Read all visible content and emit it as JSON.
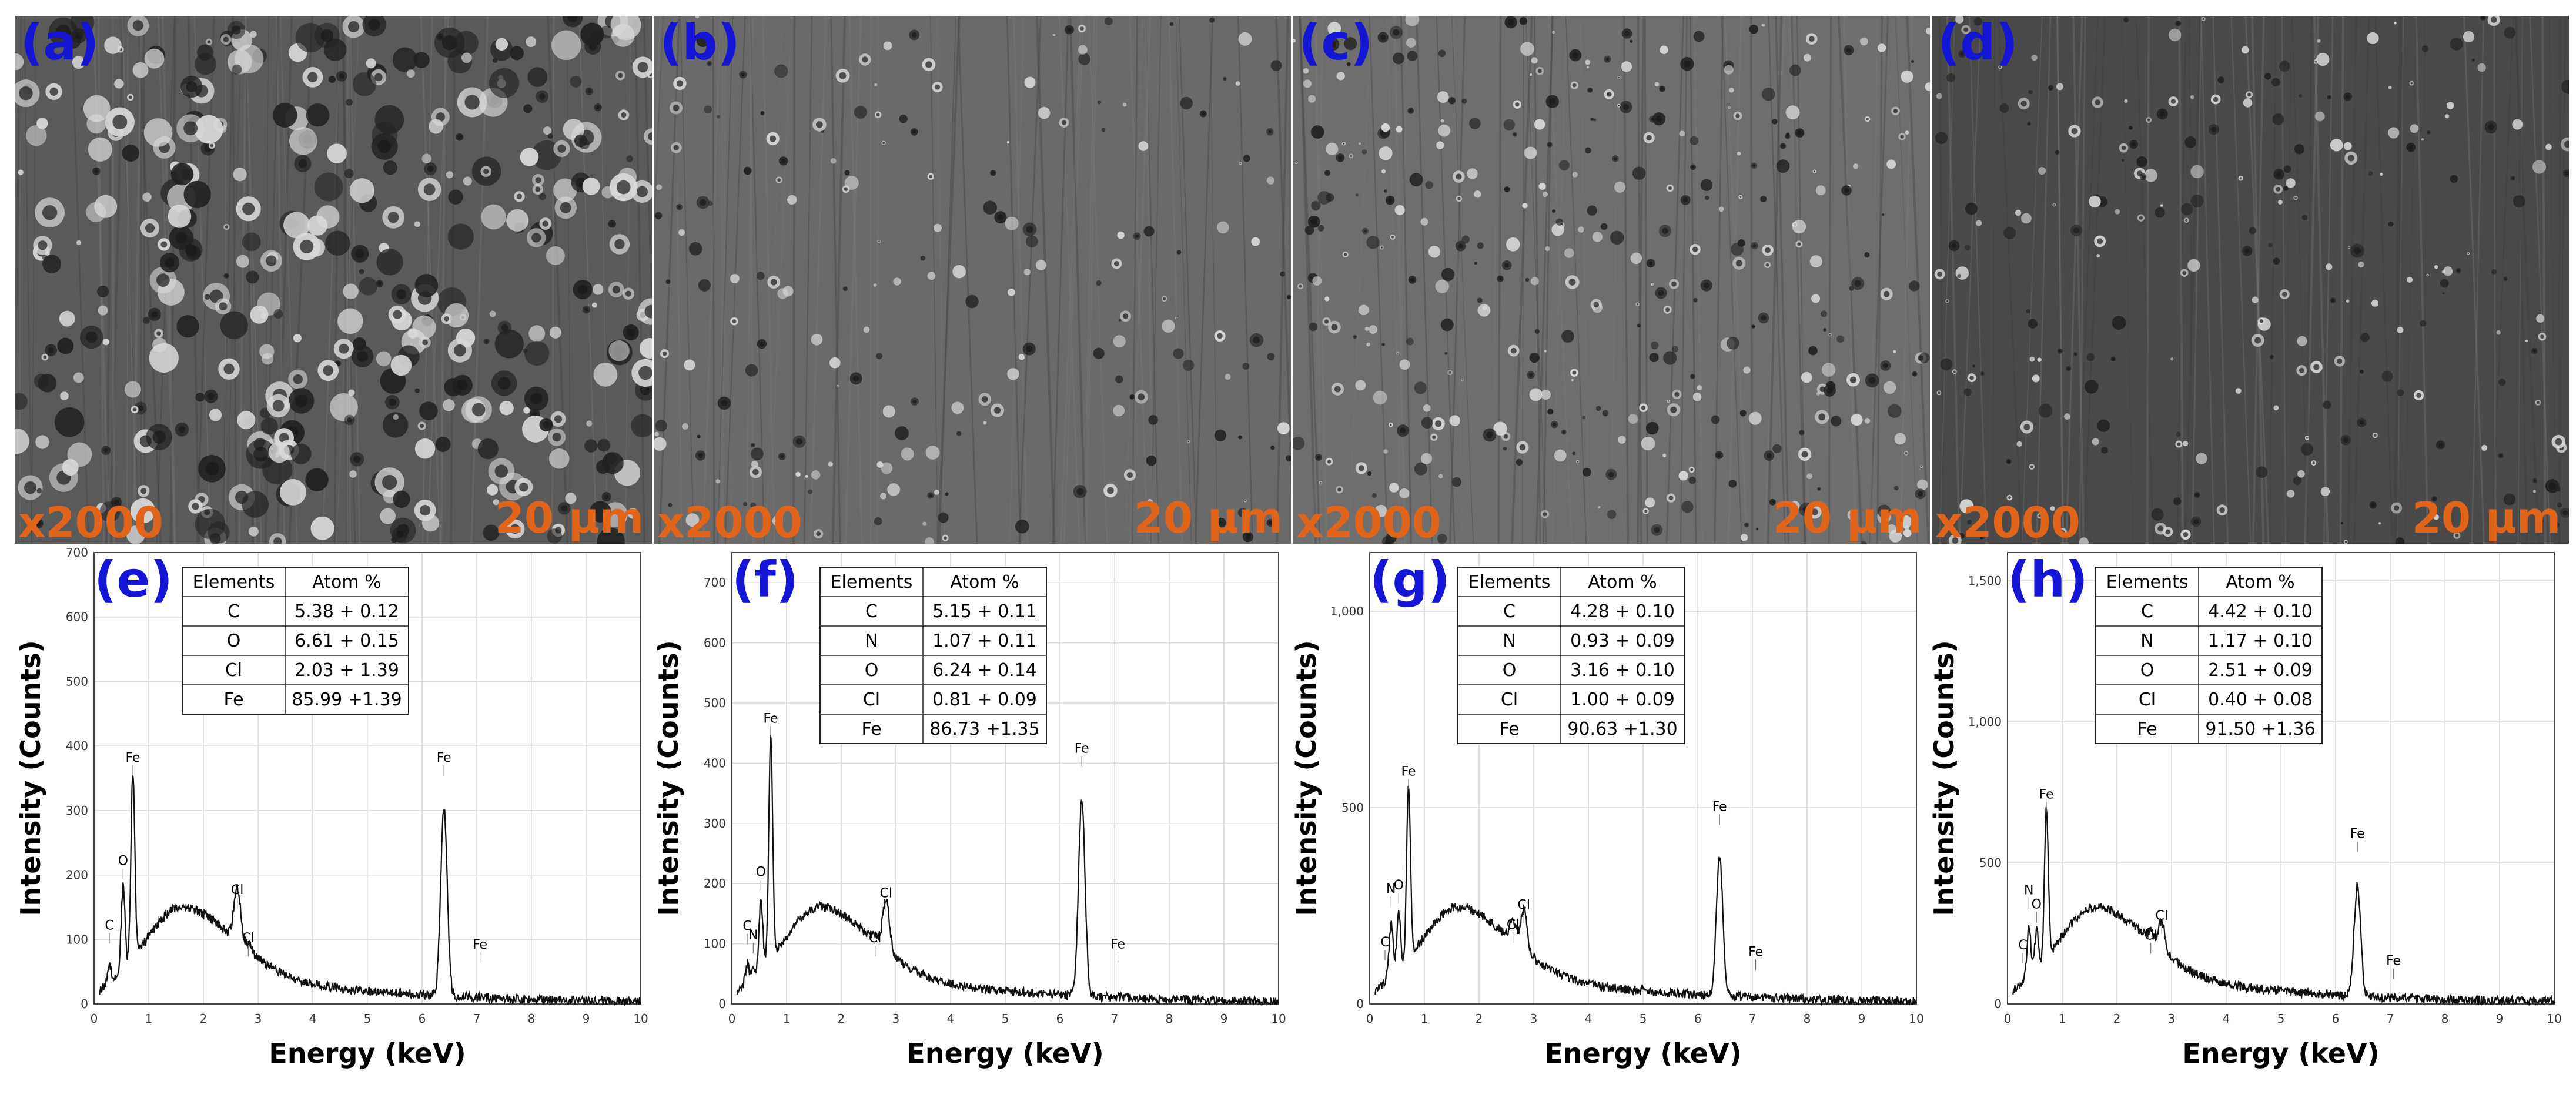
{
  "sem_panels": [
    {
      "label": "(a)",
      "magnification": "x2000",
      "scale": "20 μm",
      "shade": "#5a5a5a"
    },
    {
      "label": "(b)",
      "magnification": "x2000",
      "scale": "20 μm",
      "shade": "#6a6a6a"
    },
    {
      "label": "(c)",
      "magnification": "x2000",
      "scale": "20 μm",
      "shade": "#6e6e6e"
    },
    {
      "label": "(d)",
      "magnification": "x2000",
      "scale": "20 μm",
      "shade": "#4a4a4a"
    }
  ],
  "chart_data": [
    {
      "type": "line",
      "panel": "(e)",
      "xlabel": "Energy (keV)",
      "ylabel": "Intensity (Counts)",
      "xlim": [
        0,
        10
      ],
      "ylim": [
        0,
        700
      ],
      "yticks": [
        0,
        100,
        200,
        300,
        400,
        500,
        600,
        700
      ],
      "ytick_labels": [
        "0",
        "100",
        "200",
        "300",
        "400",
        "500",
        "600",
        "700"
      ],
      "xticks": [
        0,
        1,
        2,
        3,
        4,
        5,
        6,
        7,
        8,
        9,
        10
      ],
      "peaks": [
        {
          "label": "C",
          "x": 0.28,
          "y": 90
        },
        {
          "label": "O",
          "x": 0.53,
          "y": 190
        },
        {
          "label": "Fe",
          "x": 0.71,
          "y": 350
        },
        {
          "label": "Cl",
          "x": 2.62,
          "y": 145
        },
        {
          "label": "Cl",
          "x": 2.82,
          "y": 70
        },
        {
          "label": "Fe",
          "x": 6.4,
          "y": 350
        },
        {
          "label": "Fe",
          "x": 7.06,
          "y": 60
        }
      ],
      "table": {
        "headers": [
          "Elements",
          "Atom %"
        ],
        "rows": [
          [
            "C",
            "5.38 + 0.12"
          ],
          [
            "O",
            "6.61 + 0.15"
          ],
          [
            "Cl",
            "2.03 + 1.39"
          ],
          [
            "Fe",
            "85.99 +1.39"
          ]
        ]
      }
    },
    {
      "type": "line",
      "panel": "(f)",
      "xlabel": "Energy (keV)",
      "ylabel": "Intensity (Counts)",
      "xlim": [
        0,
        10
      ],
      "ylim": [
        0,
        750
      ],
      "yticks": [
        0,
        100,
        200,
        300,
        400,
        500,
        600,
        700
      ],
      "ytick_labels": [
        "0",
        "100",
        "200",
        "300",
        "400",
        "500",
        "600",
        "700"
      ],
      "xticks": [
        0,
        1,
        2,
        3,
        4,
        5,
        6,
        7,
        8,
        9,
        10
      ],
      "peaks": [
        {
          "label": "C",
          "x": 0.28,
          "y": 95
        },
        {
          "label": "N",
          "x": 0.39,
          "y": 80
        },
        {
          "label": "O",
          "x": 0.53,
          "y": 185
        },
        {
          "label": "Fe",
          "x": 0.71,
          "y": 440
        },
        {
          "label": "Cl",
          "x": 2.62,
          "y": 75
        },
        {
          "label": "Cl",
          "x": 2.82,
          "y": 150
        },
        {
          "label": "Fe",
          "x": 6.4,
          "y": 390
        },
        {
          "label": "Fe",
          "x": 7.06,
          "y": 65
        }
      ],
      "table": {
        "headers": [
          "Elements",
          "Atom %"
        ],
        "rows": [
          [
            "C",
            "5.15 + 0.11"
          ],
          [
            "N",
            "1.07 + 0.11"
          ],
          [
            "O",
            "6.24 + 0.14"
          ],
          [
            "Cl",
            "0.81 + 0.09"
          ],
          [
            "Fe",
            "86.73 +1.35"
          ]
        ]
      }
    },
    {
      "type": "line",
      "panel": "(g)",
      "xlabel": "Energy (keV)",
      "ylabel": "Intensity (Counts)",
      "xlim": [
        0,
        10
      ],
      "ylim": [
        0,
        1150
      ],
      "yticks": [
        0,
        500,
        1000
      ],
      "ytick_labels": [
        "0",
        "500",
        "1,000"
      ],
      "xticks": [
        0,
        1,
        2,
        3,
        4,
        5,
        6,
        7,
        8,
        9,
        10
      ],
      "peaks": [
        {
          "label": "C",
          "x": 0.28,
          "y": 105
        },
        {
          "label": "N",
          "x": 0.39,
          "y": 240
        },
        {
          "label": "O",
          "x": 0.53,
          "y": 250
        },
        {
          "label": "Fe",
          "x": 0.71,
          "y": 540
        },
        {
          "label": "Cl",
          "x": 2.62,
          "y": 150
        },
        {
          "label": "Cl",
          "x": 2.82,
          "y": 200
        },
        {
          "label": "Fe",
          "x": 6.4,
          "y": 450
        },
        {
          "label": "Fe",
          "x": 7.06,
          "y": 80
        }
      ],
      "table": {
        "headers": [
          "Elements",
          "Atom %"
        ],
        "rows": [
          [
            "C",
            "4.28 + 0.10"
          ],
          [
            "N",
            "0.93 + 0.09"
          ],
          [
            "O",
            "3.16 + 0.10"
          ],
          [
            "Cl",
            "1.00 + 0.09"
          ],
          [
            "Fe",
            "90.63 +1.30"
          ]
        ]
      }
    },
    {
      "type": "line",
      "panel": "(h)",
      "xlabel": "Energy (keV)",
      "ylabel": "Intensity (Counts)",
      "xlim": [
        0,
        10
      ],
      "ylim": [
        0,
        1600
      ],
      "yticks": [
        0,
        500,
        1000,
        1500
      ],
      "ytick_labels": [
        "0",
        "500",
        "1,000",
        "1,500"
      ],
      "xticks": [
        0,
        1,
        2,
        3,
        4,
        5,
        6,
        7,
        8,
        9,
        10
      ],
      "peaks": [
        {
          "label": "C",
          "x": 0.28,
          "y": 135
        },
        {
          "label": "N",
          "x": 0.39,
          "y": 330
        },
        {
          "label": "O",
          "x": 0.53,
          "y": 280
        },
        {
          "label": "Fe",
          "x": 0.71,
          "y": 670
        },
        {
          "label": "Cl",
          "x": 2.62,
          "y": 170
        },
        {
          "label": "Cl",
          "x": 2.82,
          "y": 240
        },
        {
          "label": "Fe",
          "x": 6.4,
          "y": 530
        },
        {
          "label": "Fe",
          "x": 7.06,
          "y": 80
        }
      ],
      "table": {
        "headers": [
          "Elements",
          "Atom %"
        ],
        "rows": [
          [
            "C",
            "4.42 + 0.10"
          ],
          [
            "N",
            "1.17 + 0.10"
          ],
          [
            "O",
            "2.51 + 0.09"
          ],
          [
            "Cl",
            "0.40 + 0.08"
          ],
          [
            "Fe",
            "91.50 +1.36"
          ]
        ]
      }
    }
  ]
}
